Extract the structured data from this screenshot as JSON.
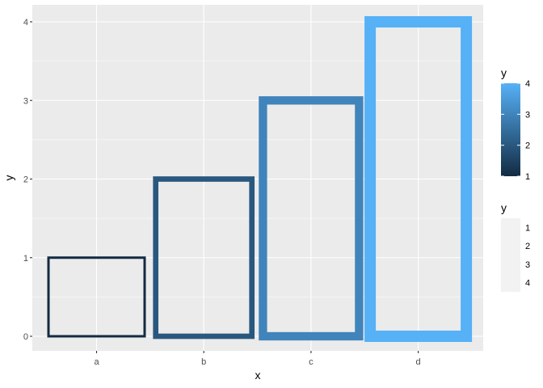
{
  "chart_data": {
    "type": "bar",
    "categories": [
      "a",
      "b",
      "c",
      "d"
    ],
    "values": [
      1,
      2,
      3,
      4
    ],
    "xlabel": "x",
    "ylabel": "y",
    "ylim": [
      0,
      4
    ],
    "y_ticks": [
      "0",
      "1",
      "2",
      "3",
      "4"
    ],
    "grid": true,
    "bar_fill": "none",
    "outline_color_by": "y",
    "outline_width_by": "y",
    "legend_position": "right",
    "legend_color": {
      "title": "y",
      "ticks": [
        "1",
        "2",
        "3",
        "4"
      ],
      "low_color": "#132B43",
      "high_color": "#56B1F7"
    },
    "legend_size": {
      "title": "y",
      "entries": [
        "1",
        "2",
        "3",
        "4"
      ]
    }
  },
  "colors": {
    "panel_background": "#EBEBEB",
    "grid_line": "#FFFFFF",
    "axis_text": "#4D4D4D",
    "axis_title": "#000000"
  }
}
